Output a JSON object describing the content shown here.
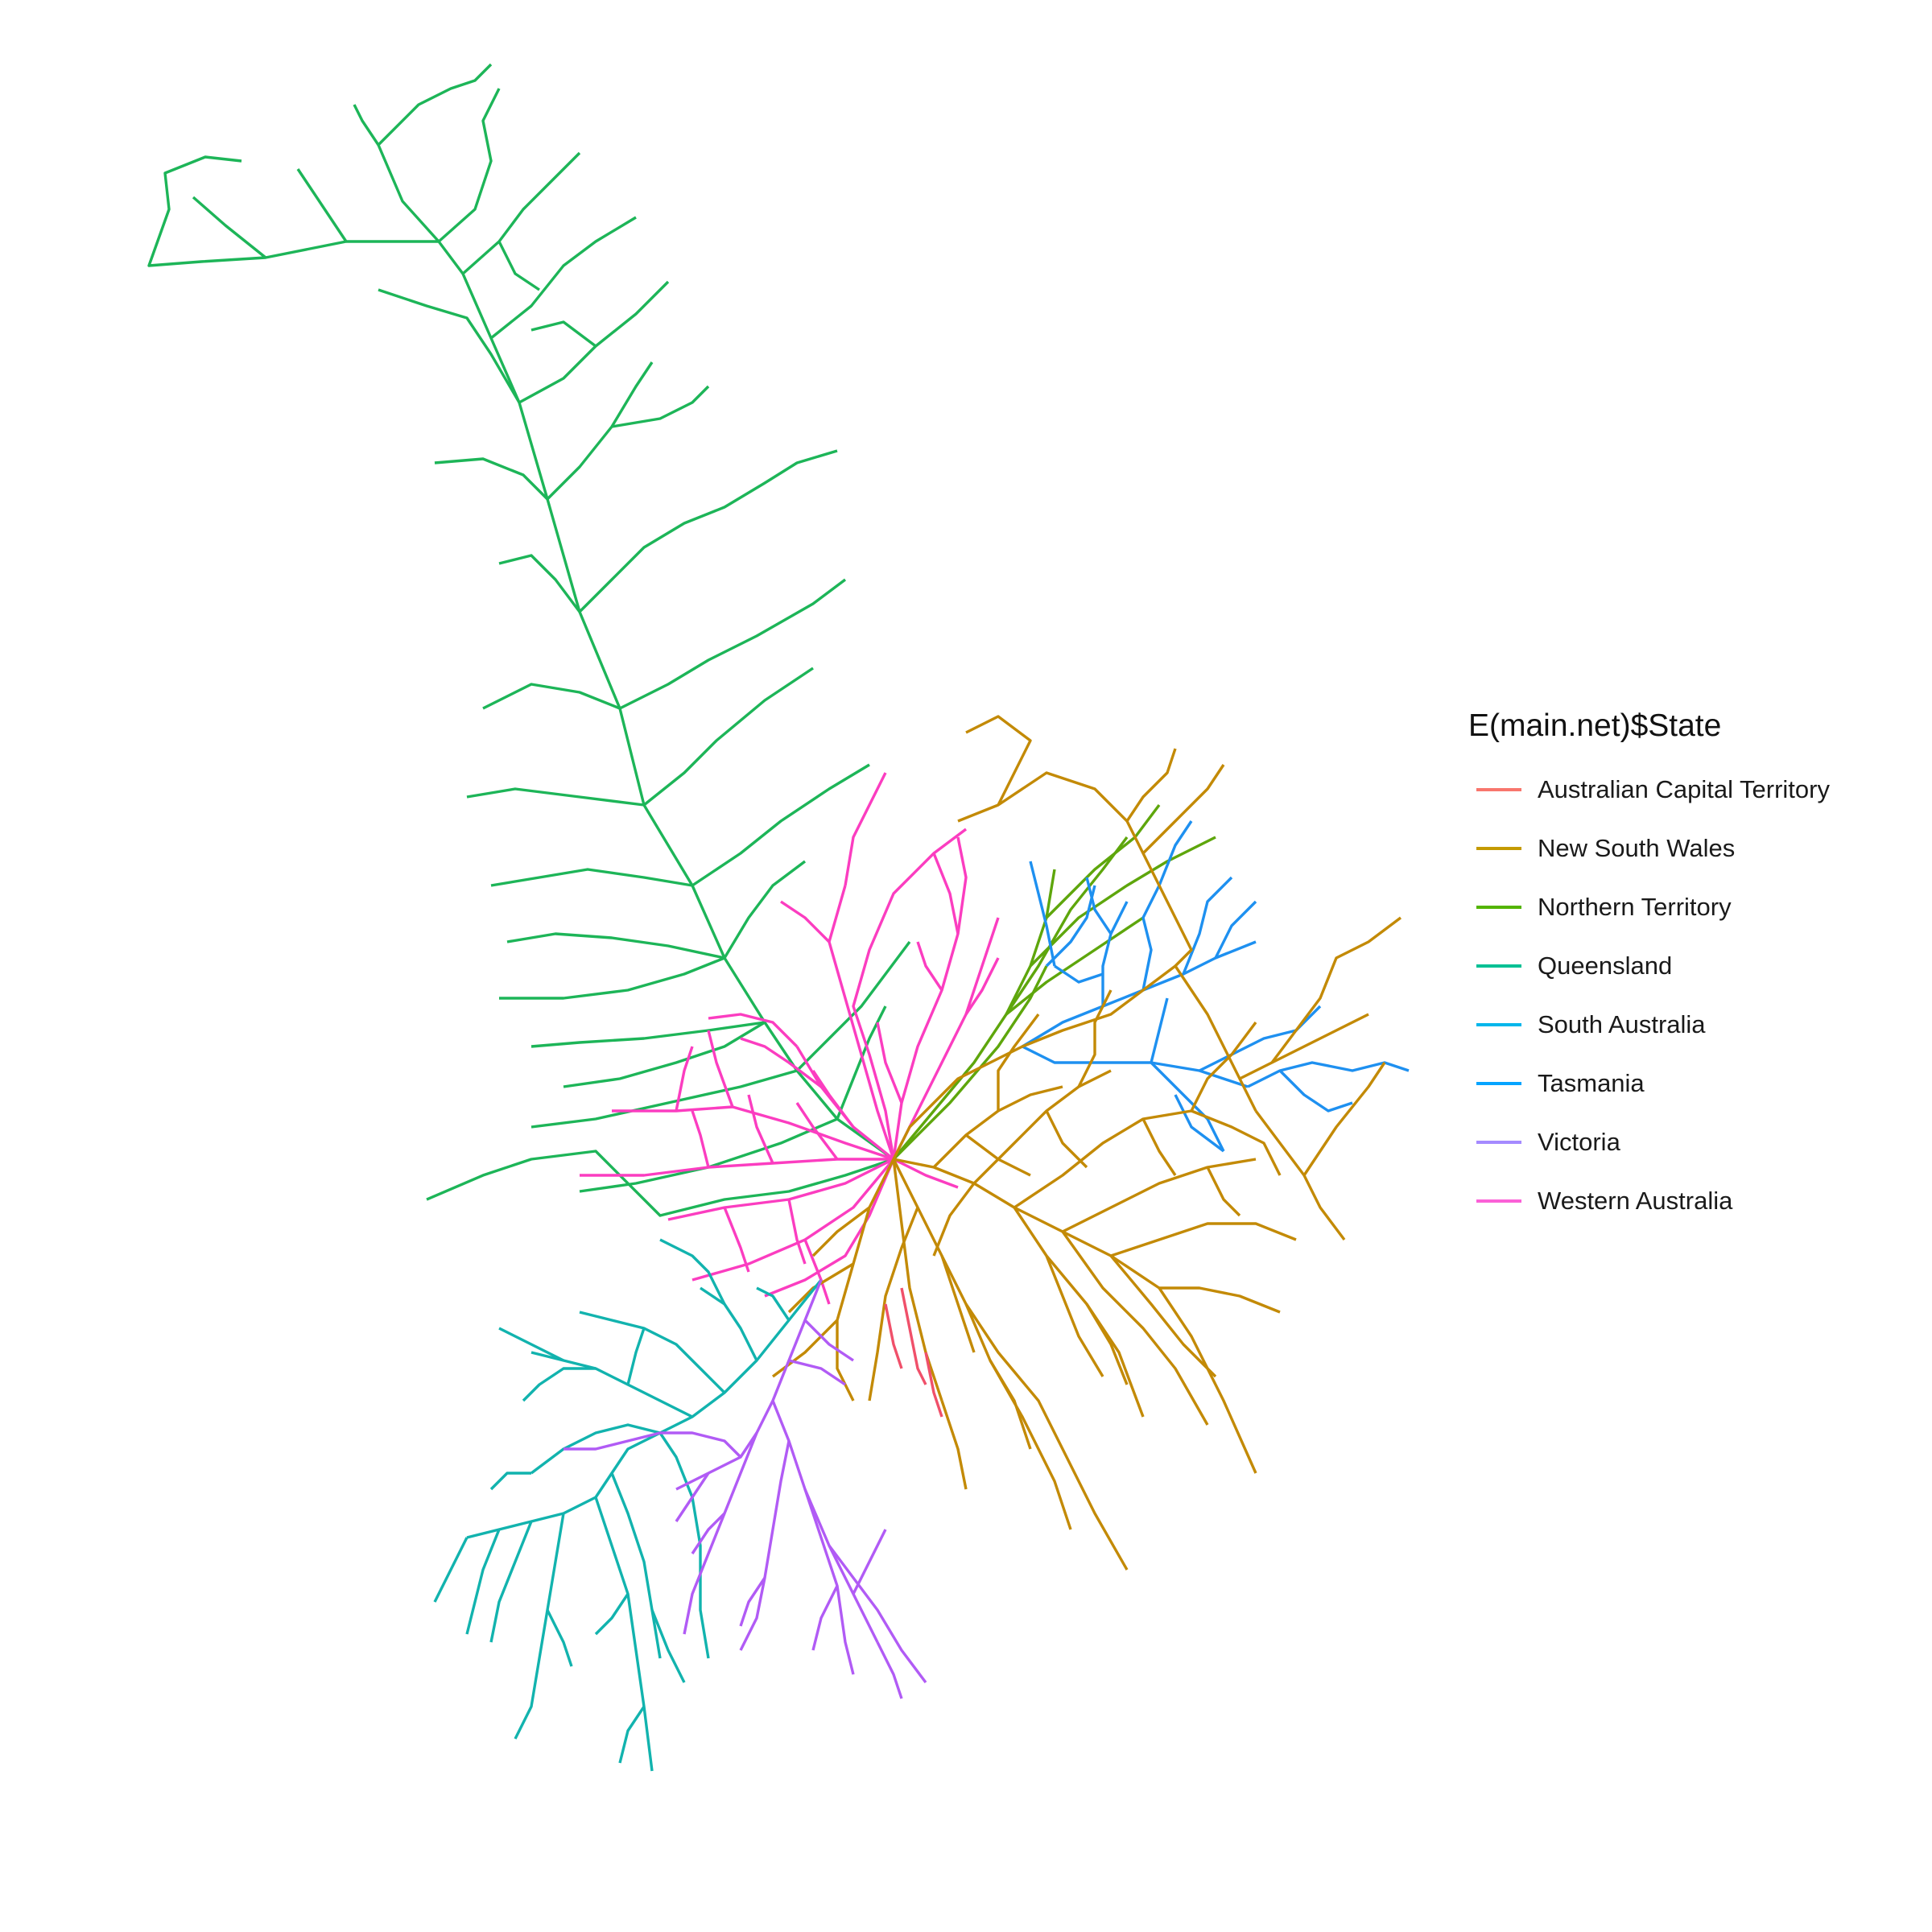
{
  "legend": {
    "title": "E(main.net)$State",
    "items": [
      {
        "label": "Australian Capital Territory",
        "color": "#F8766D"
      },
      {
        "label": "New South Wales",
        "color": "#C49A00"
      },
      {
        "label": "Northern Territory",
        "color": "#53B400"
      },
      {
        "label": "Queensland",
        "color": "#00C094"
      },
      {
        "label": "South Australia",
        "color": "#00B6EB"
      },
      {
        "label": "Tasmania",
        "color": "#06A4FF"
      },
      {
        "label": "Victoria",
        "color": "#A58AFF"
      },
      {
        "label": "Western Australia",
        "color": "#FB61D7"
      }
    ]
  }
}
